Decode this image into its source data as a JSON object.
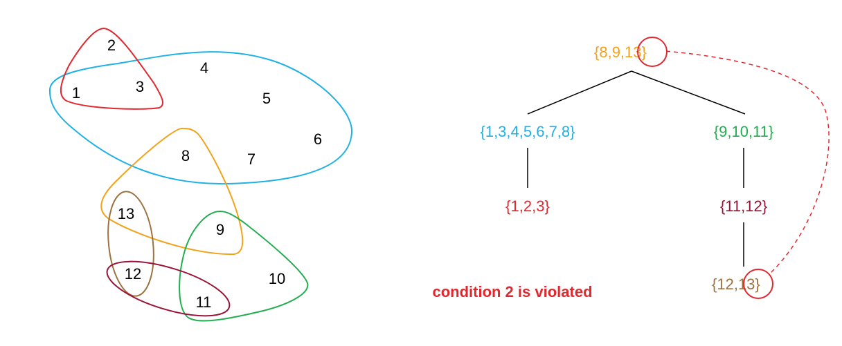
{
  "colors": {
    "red": "#e0282e",
    "blue": "#1fb1e6",
    "orange": "#f2a21a",
    "green": "#22ae4f",
    "brown": "#9b7240",
    "maroon": "#9a1236",
    "black": "#000000"
  },
  "hypergraph": {
    "vertices": [
      "1",
      "2",
      "3",
      "4",
      "5",
      "6",
      "7",
      "8",
      "9",
      "10",
      "11",
      "12",
      "13"
    ],
    "hyperedges": [
      {
        "color": "red",
        "members": "1,2,3"
      },
      {
        "color": "blue",
        "members": "1,3,4,5,6,7,8"
      },
      {
        "color": "orange",
        "members": "8,9,13"
      },
      {
        "color": "green",
        "members": "9,10,11"
      },
      {
        "color": "brown",
        "members": "12,13"
      },
      {
        "color": "maroon",
        "members": "11,12"
      }
    ]
  },
  "tree": {
    "root": {
      "open": "{8,9,",
      "highlight": "13",
      "close": "}",
      "color": "orange"
    },
    "left": {
      "label": "{1,3,4,5,6,7,8}",
      "color": "blue"
    },
    "left_child": {
      "label": "{1,2,3}",
      "color": "red"
    },
    "right": {
      "label": "{9,10,11}",
      "color": "green"
    },
    "right_child": {
      "label": "{11,12}",
      "color": "maroon"
    },
    "right_leaf": {
      "open": "{12,",
      "highlight": "13",
      "close": "}",
      "color": "brown"
    }
  },
  "message": "condition 2 is violated"
}
